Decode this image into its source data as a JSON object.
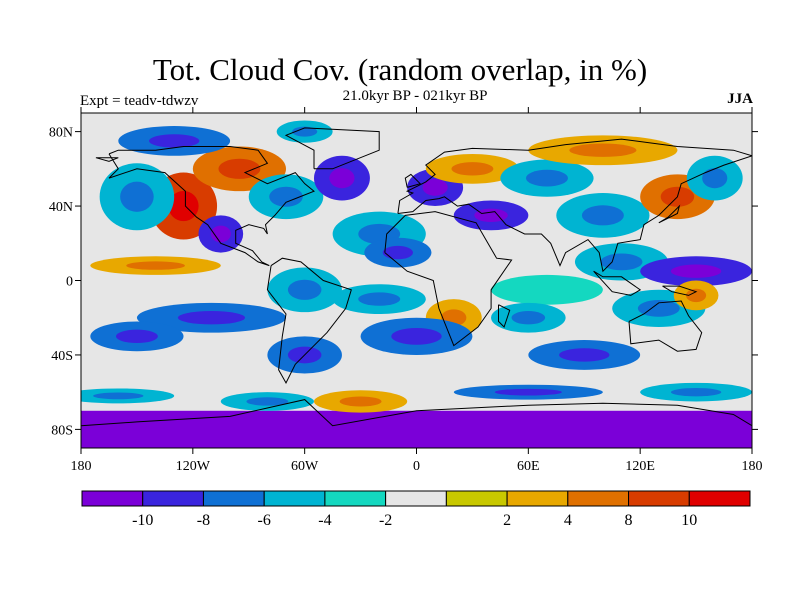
{
  "title": "Tot. Cloud Cov. (random overlap, in %)",
  "subtitle": "21.0kyr BP - 021kyr BP",
  "experiment_label": "Expt = teadv-tdwzv",
  "season": "JJA",
  "map": {
    "projection": "cylindrical-equidistant",
    "lon_range": [
      -180,
      180
    ],
    "lat_range": [
      -90,
      90
    ],
    "x_ticks": [
      {
        "value": -180,
        "label": "180"
      },
      {
        "value": -120,
        "label": "120W"
      },
      {
        "value": -60,
        "label": "60W"
      },
      {
        "value": 0,
        "label": "0"
      },
      {
        "value": 60,
        "label": "60E"
      },
      {
        "value": 120,
        "label": "120E"
      },
      {
        "value": 180,
        "label": "180"
      }
    ],
    "y_ticks": [
      {
        "value": 80,
        "label": "80N"
      },
      {
        "value": 40,
        "label": "40N"
      },
      {
        "value": 0,
        "label": "0"
      },
      {
        "value": -40,
        "label": "40S"
      },
      {
        "value": -80,
        "label": "80S"
      }
    ],
    "background_color": "#e6e6e6",
    "anomaly_regions": [
      {
        "lon": -125,
        "lat": 40,
        "rlon": 18,
        "rlat": 18,
        "level": 9
      },
      {
        "lon": -140,
        "lat": 8,
        "rlon": 35,
        "rlat": 5,
        "level": 7
      },
      {
        "lon": -150,
        "lat": 45,
        "rlon": 20,
        "rlat": 18,
        "level": 3
      },
      {
        "lon": -95,
        "lat": 60,
        "rlon": 25,
        "rlat": 12,
        "level": 8
      },
      {
        "lon": -105,
        "lat": 25,
        "rlon": 12,
        "rlat": 10,
        "level": 1
      },
      {
        "lon": -70,
        "lat": 45,
        "rlon": 20,
        "rlat": 12,
        "level": 3
      },
      {
        "lon": -40,
        "lat": 55,
        "rlon": 15,
        "rlat": 12,
        "level": 1
      },
      {
        "lon": -130,
        "lat": 75,
        "rlon": 30,
        "rlat": 8,
        "level": 2
      },
      {
        "lon": -60,
        "lat": 80,
        "rlon": 15,
        "rlat": 6,
        "level": 3
      },
      {
        "lon": -20,
        "lat": 25,
        "rlon": 25,
        "rlat": 12,
        "level": 3
      },
      {
        "lon": -10,
        "lat": 15,
        "rlon": 18,
        "rlat": 8,
        "level": 2
      },
      {
        "lon": 10,
        "lat": 50,
        "rlon": 15,
        "rlat": 10,
        "level": 1
      },
      {
        "lon": 30,
        "lat": 60,
        "rlon": 25,
        "rlat": 8,
        "level": 7
      },
      {
        "lon": 70,
        "lat": 55,
        "rlon": 25,
        "rlat": 10,
        "level": 3
      },
      {
        "lon": 100,
        "lat": 70,
        "rlon": 40,
        "rlat": 8,
        "level": 7
      },
      {
        "lon": 40,
        "lat": 35,
        "rlon": 20,
        "rlat": 8,
        "level": 1
      },
      {
        "lon": 100,
        "lat": 35,
        "rlon": 25,
        "rlat": 12,
        "level": 3
      },
      {
        "lon": 140,
        "lat": 45,
        "rlon": 20,
        "rlat": 12,
        "level": 8
      },
      {
        "lon": 160,
        "lat": 55,
        "rlon": 15,
        "rlat": 12,
        "level": 3
      },
      {
        "lon": 110,
        "lat": 10,
        "rlon": 25,
        "rlat": 10,
        "level": 3
      },
      {
        "lon": 150,
        "lat": 5,
        "rlon": 30,
        "rlat": 8,
        "level": 1
      },
      {
        "lon": 70,
        "lat": -5,
        "rlon": 30,
        "rlat": 8,
        "level": 4
      },
      {
        "lon": 60,
        "lat": -20,
        "rlon": 20,
        "rlat": 8,
        "level": 3
      },
      {
        "lon": 130,
        "lat": -15,
        "rlon": 25,
        "rlat": 10,
        "level": 3
      },
      {
        "lon": 150,
        "lat": -8,
        "rlon": 12,
        "rlat": 8,
        "level": 7
      },
      {
        "lon": -60,
        "lat": -5,
        "rlon": 20,
        "rlat": 12,
        "level": 3
      },
      {
        "lon": -110,
        "lat": -20,
        "rlon": 40,
        "rlat": 8,
        "level": 2
      },
      {
        "lon": -150,
        "lat": -30,
        "rlon": 25,
        "rlat": 8,
        "level": 2
      },
      {
        "lon": 20,
        "lat": -20,
        "rlon": 15,
        "rlat": 10,
        "level": 7
      },
      {
        "lon": -20,
        "lat": -10,
        "rlon": 25,
        "rlat": 8,
        "level": 3
      },
      {
        "lon": 0,
        "lat": -30,
        "rlon": 30,
        "rlat": 10,
        "level": 2
      },
      {
        "lon": 90,
        "lat": -40,
        "rlon": 30,
        "rlat": 8,
        "level": 2
      },
      {
        "lon": -60,
        "lat": -40,
        "rlon": 20,
        "rlat": 10,
        "level": 2
      },
      {
        "lon": -30,
        "lat": -65,
        "rlon": 25,
        "rlat": 6,
        "level": 7
      },
      {
        "lon": -80,
        "lat": -65,
        "rlon": 25,
        "rlat": 5,
        "level": 3
      },
      {
        "lon": -160,
        "lat": -62,
        "rlon": 30,
        "rlat": 4,
        "level": 3
      },
      {
        "lon": 150,
        "lat": -60,
        "rlon": 30,
        "rlat": 5,
        "level": 3
      },
      {
        "lon": 60,
        "lat": -60,
        "rlon": 40,
        "rlat": 4,
        "level": 2
      }
    ],
    "polar_band": {
      "lat_top": -70,
      "lat_bottom": -90,
      "level": 0
    }
  },
  "colorbar": {
    "colors": [
      "#7b00d8",
      "#3a24de",
      "#0f70d4",
      "#00b4d2",
      "#14d8c0",
      "#e6e6e6",
      "#c8c800",
      "#e8a800",
      "#e07000",
      "#d83c00",
      "#e00000"
    ],
    "labels": [
      "-10",
      "-8",
      "-6",
      "-4",
      "-2",
      "2",
      "4",
      "8",
      "10"
    ]
  }
}
